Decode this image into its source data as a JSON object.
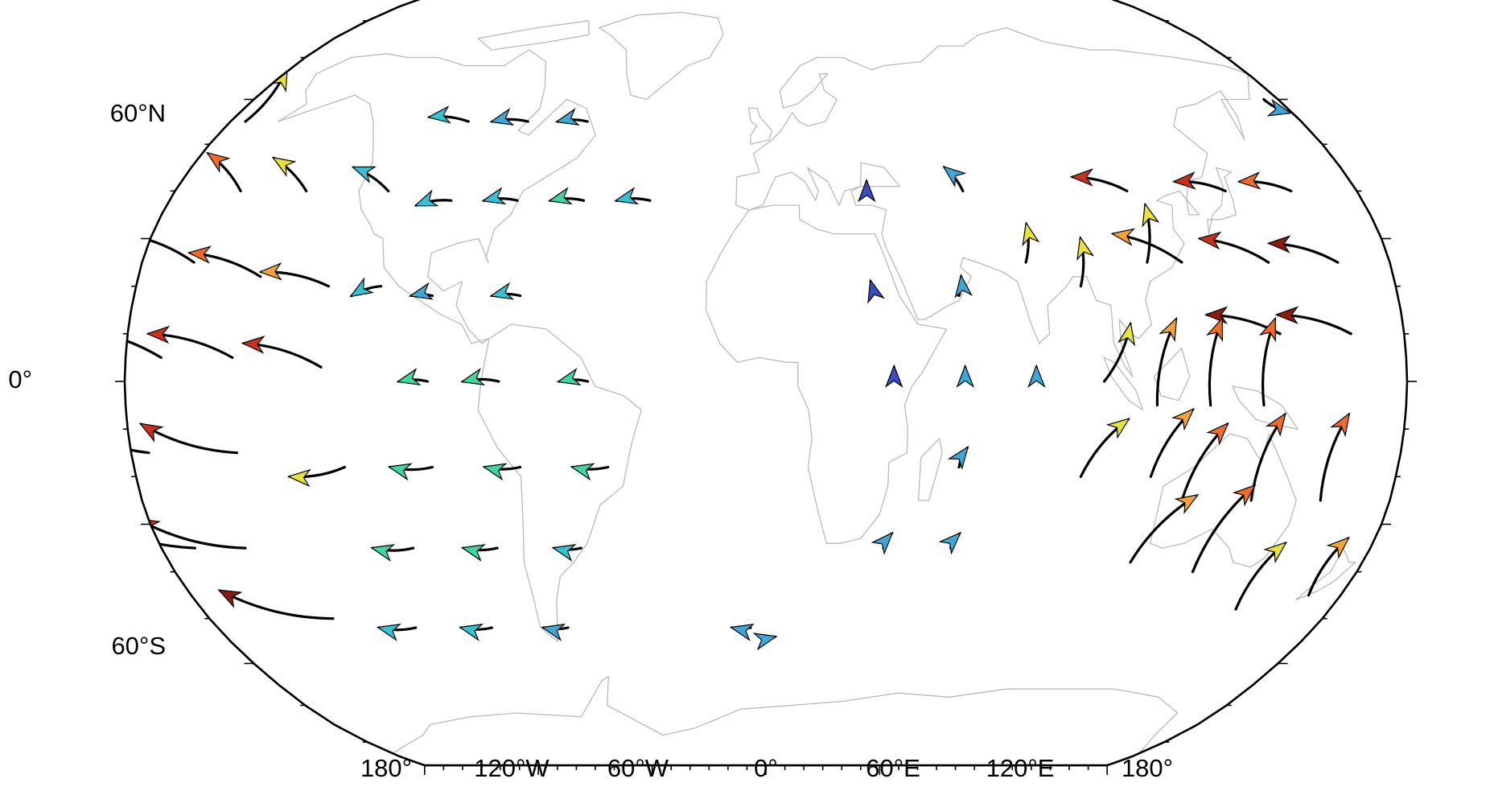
{
  "map": {
    "projection": "robinson",
    "longitude_labels": [
      "180°",
      "120°W",
      "60°W",
      "0°",
      "60°E",
      "120°E",
      "180°"
    ],
    "latitude_labels": [
      "60°N",
      "0°",
      "60°S"
    ],
    "coastline_color": "#b9b9b9",
    "frame_color": "#000000"
  },
  "vector_field": {
    "description_colormap": [
      "#3b4cc0",
      "#3fa7d6",
      "#35c3d3",
      "#3fd7a0",
      "#b6f04a",
      "#e7e33b",
      "#f6a23a",
      "#f06a2b",
      "#c8321d",
      "#8b1a10"
    ],
    "vectors": [
      {
        "lon": -175,
        "lat": 55,
        "dlon": -6,
        "dlat": 12,
        "mag": 0.55
      },
      {
        "lon": -160,
        "lat": 40,
        "dlon": -18,
        "dlat": 8,
        "mag": 0.78
      },
      {
        "lon": -140,
        "lat": 40,
        "dlon": -16,
        "dlat": 7,
        "mag": 0.55
      },
      {
        "lon": -115,
        "lat": 40,
        "dlon": -14,
        "dlat": 5,
        "mag": 0.22
      },
      {
        "lon": -165,
        "lat": 25,
        "dlon": -24,
        "dlat": 6,
        "mag": 0.9
      },
      {
        "lon": -145,
        "lat": 22,
        "dlon": -22,
        "dlat": 5,
        "mag": 0.78
      },
      {
        "lon": -125,
        "lat": 20,
        "dlon": -20,
        "dlat": 3,
        "mag": 0.68
      },
      {
        "lon": -110,
        "lat": 20,
        "dlon": -8,
        "dlat": -2,
        "mag": 0.25
      },
      {
        "lon": -170,
        "lat": 5,
        "dlon": -26,
        "dlat": 6,
        "mag": 0.95
      },
      {
        "lon": -150,
        "lat": 5,
        "dlon": -24,
        "dlat": 5,
        "mag": 0.9
      },
      {
        "lon": -125,
        "lat": 3,
        "dlon": -22,
        "dlat": 5,
        "mag": 0.92
      },
      {
        "lon": -175,
        "lat": -15,
        "dlon": -28,
        "dlat": 8,
        "mag": 0.96
      },
      {
        "lon": -150,
        "lat": -15,
        "dlon": -26,
        "dlat": 6,
        "mag": 0.92
      },
      {
        "lon": -170,
        "lat": -35,
        "dlon": -30,
        "dlat": 7,
        "mag": 0.97
      },
      {
        "lon": -155,
        "lat": -35,
        "dlon": -28,
        "dlat": 6,
        "mag": 0.94
      },
      {
        "lon": -140,
        "lat": -50,
        "dlon": -30,
        "dlat": 6,
        "mag": 0.96
      },
      {
        "lon": -100,
        "lat": 55,
        "dlon": -14,
        "dlat": 1,
        "mag": 0.2
      },
      {
        "lon": -80,
        "lat": 55,
        "dlon": -12,
        "dlat": 0,
        "mag": 0.15
      },
      {
        "lon": -60,
        "lat": 55,
        "dlon": -10,
        "dlat": 0,
        "mag": 0.12
      },
      {
        "lon": -95,
        "lat": 38,
        "dlon": -10,
        "dlat": -1,
        "mag": 0.22
      },
      {
        "lon": -75,
        "lat": 38,
        "dlon": -10,
        "dlat": 0,
        "mag": 0.25
      },
      {
        "lon": -55,
        "lat": 38,
        "dlon": -10,
        "dlat": 0,
        "mag": 0.28
      },
      {
        "lon": -35,
        "lat": 38,
        "dlon": -10,
        "dlat": 0,
        "mag": 0.22
      },
      {
        "lon": -95,
        "lat": 18,
        "dlon": -6,
        "dlat": 0,
        "mag": 0.1
      },
      {
        "lon": -70,
        "lat": 18,
        "dlon": -8,
        "dlat": 0,
        "mag": 0.2
      },
      {
        "lon": -95,
        "lat": 0,
        "dlon": -8,
        "dlat": 0,
        "mag": 0.3
      },
      {
        "lon": -75,
        "lat": 0,
        "dlon": -10,
        "dlat": 0,
        "mag": 0.32
      },
      {
        "lon": -50,
        "lat": 0,
        "dlon": -8,
        "dlat": 0,
        "mag": 0.28
      },
      {
        "lon": -120,
        "lat": -18,
        "dlon": -16,
        "dlat": -2,
        "mag": 0.55
      },
      {
        "lon": -95,
        "lat": -18,
        "dlon": -12,
        "dlat": 0,
        "mag": 0.35
      },
      {
        "lon": -70,
        "lat": -18,
        "dlon": -10,
        "dlat": 0,
        "mag": 0.32
      },
      {
        "lon": -45,
        "lat": -18,
        "dlon": -10,
        "dlat": 0,
        "mag": 0.28
      },
      {
        "lon": -105,
        "lat": -35,
        "dlon": -12,
        "dlat": 0,
        "mag": 0.3
      },
      {
        "lon": -80,
        "lat": -35,
        "dlon": -10,
        "dlat": 0,
        "mag": 0.28
      },
      {
        "lon": -55,
        "lat": -35,
        "dlon": -8,
        "dlat": 0,
        "mag": 0.24
      },
      {
        "lon": -115,
        "lat": -52,
        "dlon": -12,
        "dlat": 0,
        "mag": 0.2
      },
      {
        "lon": -90,
        "lat": -52,
        "dlon": -10,
        "dlat": 0,
        "mag": 0.18
      },
      {
        "lon": -65,
        "lat": -52,
        "dlon": -8,
        "dlat": 0,
        "mag": 0.1
      },
      {
        "lon": -5,
        "lat": -52,
        "dlon": -6,
        "dlat": 0,
        "mag": 0.08
      },
      {
        "lon": 110,
        "lat": 40,
        "dlon": -15,
        "dlat": 3,
        "mag": 0.93
      },
      {
        "lon": 140,
        "lat": 40,
        "dlon": -14,
        "dlat": 2,
        "mag": 0.93
      },
      {
        "lon": 160,
        "lat": 40,
        "dlon": -14,
        "dlat": 2,
        "mag": 0.8
      },
      {
        "lon": 120,
        "lat": 25,
        "dlon": -18,
        "dlat": 6,
        "mag": 0.72
      },
      {
        "lon": 145,
        "lat": 25,
        "dlon": -18,
        "dlat": 5,
        "mag": 0.93
      },
      {
        "lon": 165,
        "lat": 25,
        "dlon": -18,
        "dlat": 4,
        "mag": 0.95
      },
      {
        "lon": 145,
        "lat": 10,
        "dlon": -20,
        "dlat": 4,
        "mag": 0.95
      },
      {
        "lon": 165,
        "lat": 10,
        "dlon": -20,
        "dlat": 4,
        "mag": 0.95
      },
      {
        "lon": 90,
        "lat": 20,
        "dlon": 2,
        "dlat": 10,
        "mag": 0.6
      },
      {
        "lon": 110,
        "lat": 25,
        "dlon": 4,
        "dlat": 12,
        "mag": 0.55
      },
      {
        "lon": 75,
        "lat": 25,
        "dlon": 2,
        "dlat": 8,
        "mag": 0.5
      },
      {
        "lon": 95,
        "lat": 0,
        "dlon": 8,
        "dlat": 12,
        "mag": 0.52
      },
      {
        "lon": 110,
        "lat": -5,
        "dlon": 6,
        "dlat": 18,
        "mag": 0.65
      },
      {
        "lon": 125,
        "lat": -5,
        "dlon": 4,
        "dlat": 18,
        "mag": 0.75
      },
      {
        "lon": 140,
        "lat": -5,
        "dlon": 4,
        "dlat": 18,
        "mag": 0.82
      },
      {
        "lon": 90,
        "lat": -20,
        "dlon": 12,
        "dlat": 12,
        "mag": 0.55
      },
      {
        "lon": 110,
        "lat": -20,
        "dlon": 10,
        "dlat": 14,
        "mag": 0.65
      },
      {
        "lon": 120,
        "lat": -25,
        "dlon": 10,
        "dlat": 16,
        "mag": 0.78
      },
      {
        "lon": 140,
        "lat": -25,
        "dlon": 6,
        "dlat": 18,
        "mag": 0.8
      },
      {
        "lon": 160,
        "lat": -25,
        "dlon": 4,
        "dlat": 18,
        "mag": 0.75
      },
      {
        "lon": 110,
        "lat": -38,
        "dlon": 14,
        "dlat": 14,
        "mag": 0.7
      },
      {
        "lon": 130,
        "lat": -40,
        "dlon": 10,
        "dlat": 18,
        "mag": 0.82
      },
      {
        "lon": 150,
        "lat": -48,
        "dlon": 4,
        "dlat": 14,
        "mag": 0.55
      },
      {
        "lon": 170,
        "lat": -45,
        "dlon": 2,
        "dlat": 12,
        "mag": 0.72
      },
      {
        "lon": 30,
        "lat": 40,
        "dlon": 1,
        "dlat": 2,
        "mag": 0.05
      },
      {
        "lon": 60,
        "lat": 40,
        "dlon": -4,
        "dlat": 5,
        "mag": 0.12
      },
      {
        "lon": 30,
        "lat": 18,
        "dlon": 0,
        "dlat": 3,
        "mag": 0.05
      },
      {
        "lon": 55,
        "lat": 18,
        "dlon": 1,
        "dlat": 4,
        "mag": 0.08
      },
      {
        "lon": 35,
        "lat": 0,
        "dlon": 1,
        "dlat": 3,
        "mag": 0.05
      },
      {
        "lon": 55,
        "lat": 0,
        "dlon": 1,
        "dlat": 3,
        "mag": 0.1
      },
      {
        "lon": 75,
        "lat": 0,
        "dlon": 1,
        "dlat": 3,
        "mag": 0.1
      },
      {
        "lon": 55,
        "lat": -18,
        "dlon": 2,
        "dlat": 4,
        "mag": 0.12
      },
      {
        "lon": 35,
        "lat": -35,
        "dlon": 2,
        "dlat": 3,
        "mag": 0.1
      },
      {
        "lon": 55,
        "lat": -35,
        "dlon": 2,
        "dlat": 3,
        "mag": 0.12
      },
      {
        "lon": 175,
        "lat": 60,
        "dlon": 4,
        "dlat": -3,
        "mag": 0.06
      },
      {
        "lon": 0,
        "lat": -55,
        "dlon": 3,
        "dlat": 1,
        "mag": 0.06
      }
    ]
  }
}
